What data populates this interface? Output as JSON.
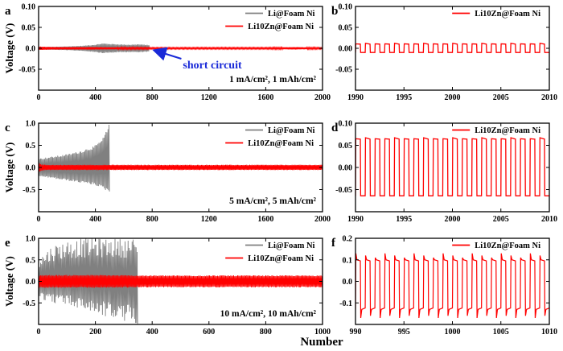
{
  "colors": {
    "li": "#808080",
    "zn": "#ff0000",
    "annotation": "#1a2ad8",
    "axis": "#000000"
  },
  "figure": {
    "shared_xlabel": "Number"
  },
  "chart_data": [
    {
      "id": "a",
      "panel_label": "a",
      "type": "line",
      "xlabel": "",
      "ylabel": "Voltage (V)",
      "xlim": [
        0,
        2000
      ],
      "ylim": [
        -0.1,
        0.1
      ],
      "xticks": [
        0,
        400,
        800,
        1200,
        1600,
        2000
      ],
      "yticks": [
        0.1,
        0.05,
        0.0,
        -0.05
      ],
      "ytick_labels": [
        "0.10",
        "0.05",
        "0.0",
        "-0.05"
      ],
      "legend": [
        "Li@Foam Ni",
        "Li10Zn@Foam Ni"
      ],
      "annotation": "1 mA/cm², 1 mAh/cm²",
      "callout": {
        "text": "short circuit",
        "x": 790,
        "y": 0.0
      },
      "series": [
        {
          "name": "Li@Foam Ni",
          "color": "#808080",
          "style": "envelope",
          "x_end": 780,
          "envelope": [
            [
              0,
              0.003
            ],
            [
              150,
              0.004
            ],
            [
              300,
              0.006
            ],
            [
              400,
              0.009
            ],
            [
              450,
              0.012
            ],
            [
              550,
              0.01
            ],
            [
              650,
              0.009
            ],
            [
              700,
              0.01
            ],
            [
              780,
              0.008
            ]
          ]
        },
        {
          "name": "Li10Zn@Foam Ni",
          "color": "#ff0000",
          "style": "envelope",
          "x_end": 2000,
          "envelope": [
            [
              0,
              0.004
            ],
            [
              100,
              0.003
            ],
            [
              400,
              0.003
            ],
            [
              800,
              0.002
            ],
            [
              1200,
              0.002
            ],
            [
              1600,
              0.002
            ],
            [
              1800,
              0.003
            ],
            [
              2000,
              0.002
            ]
          ]
        }
      ]
    },
    {
      "id": "b",
      "panel_label": "b",
      "type": "line",
      "xlabel": "",
      "ylabel": "",
      "xlim": [
        1990,
        2010
      ],
      "ylim": [
        -0.1,
        0.1
      ],
      "xticks": [
        1990,
        1995,
        2000,
        2005,
        2010
      ],
      "yticks": [
        0.1,
        0.05,
        0.0,
        -0.05
      ],
      "ytick_labels": [
        "0.10",
        "0.05",
        "0.00",
        "-0.05"
      ],
      "legend": [
        "Li10Zn@Foam Ni"
      ],
      "series": [
        {
          "name": "Li10Zn@Foam Ni",
          "color": "#ff0000",
          "style": "square",
          "x_start": 1990,
          "period": 1,
          "high": 0.01,
          "low": -0.01,
          "overshoot": 0.002
        }
      ]
    },
    {
      "id": "c",
      "panel_label": "c",
      "type": "line",
      "xlabel": "",
      "ylabel": "Voltage (V)",
      "xlim": [
        0,
        2000
      ],
      "ylim": [
        -1.0,
        1.0
      ],
      "xticks": [
        0,
        400,
        800,
        1200,
        1600,
        2000
      ],
      "yticks": [
        1.0,
        0.5,
        0.0,
        -0.5
      ],
      "ytick_labels": [
        "1.0",
        "0.5",
        "0.0",
        "-0.5"
      ],
      "legend": [
        "Li@Foam Ni",
        "Li10Zn@Foam Ni"
      ],
      "annotation": "5 mA/cm², 5 mAh/cm²",
      "series": [
        {
          "name": "Li@Foam Ni",
          "color": "#808080",
          "style": "envelope_asym",
          "x_end": 500,
          "upper": [
            [
              0,
              0.2
            ],
            [
              100,
              0.25
            ],
            [
              200,
              0.3
            ],
            [
              300,
              0.38
            ],
            [
              400,
              0.5
            ],
            [
              450,
              0.65
            ],
            [
              480,
              0.85
            ],
            [
              500,
              1.0
            ]
          ],
          "lower": [
            [
              0,
              -0.2
            ],
            [
              100,
              -0.25
            ],
            [
              200,
              -0.3
            ],
            [
              300,
              -0.35
            ],
            [
              400,
              -0.4
            ],
            [
              450,
              -0.48
            ],
            [
              500,
              -0.56
            ]
          ]
        },
        {
          "name": "Li10Zn@Foam Ni",
          "color": "#ff0000",
          "style": "envelope",
          "x_end": 2000,
          "envelope": [
            [
              0,
              0.12
            ],
            [
              20,
              0.07
            ],
            [
              60,
              0.06
            ],
            [
              400,
              0.06
            ],
            [
              1000,
              0.06
            ],
            [
              1600,
              0.06
            ],
            [
              2000,
              0.06
            ]
          ]
        }
      ]
    },
    {
      "id": "d",
      "panel_label": "d",
      "type": "line",
      "xlabel": "",
      "ylabel": "",
      "xlim": [
        1990,
        2010
      ],
      "ylim": [
        -0.1,
        0.1
      ],
      "xticks": [
        1990,
        1995,
        2000,
        2005,
        2010
      ],
      "yticks": [
        0.1,
        0.05,
        0.0,
        -0.05
      ],
      "ytick_labels": [
        "0.10",
        "0.05",
        "0.00",
        "-0.05"
      ],
      "legend": [
        "Li10Zn@Foam Ni"
      ],
      "series": [
        {
          "name": "Li10Zn@Foam Ni",
          "color": "#ff0000",
          "style": "square",
          "x_start": 1990,
          "period": 1,
          "high": 0.064,
          "low": -0.064,
          "overshoot": 0.003
        }
      ]
    },
    {
      "id": "e",
      "panel_label": "e",
      "type": "line",
      "xlabel": "",
      "ylabel": "Voltage (V)",
      "xlim": [
        0,
        1000
      ],
      "ylim": [
        -1.0,
        1.0
      ],
      "xticks": [
        0,
        200,
        400,
        600,
        800,
        1000
      ],
      "yticks": [
        1.0,
        0.5,
        0.0,
        -0.5
      ],
      "ytick_labels": [
        "1.0",
        "0.5",
        "0.0",
        "-0.5"
      ],
      "legend": [
        "Li@Foam Ni",
        "Li10Zn@Foam Ni"
      ],
      "annotation": "10 mA/cm², 10 mAh/cm²",
      "series": [
        {
          "name": "Li@Foam Ni",
          "color": "#808080",
          "style": "noisy_block",
          "x_end": 350,
          "upper": [
            [
              0,
              0.55
            ],
            [
              50,
              0.85
            ],
            [
              100,
              0.95
            ],
            [
              150,
              1.0
            ],
            [
              200,
              1.0
            ],
            [
              250,
              1.0
            ],
            [
              300,
              1.0
            ],
            [
              350,
              1.0
            ]
          ],
          "lower": [
            [
              0,
              -0.4
            ],
            [
              50,
              -0.5
            ],
            [
              100,
              -0.55
            ],
            [
              150,
              -0.65
            ],
            [
              200,
              -0.75
            ],
            [
              250,
              -0.85
            ],
            [
              300,
              -0.95
            ],
            [
              350,
              -1.0
            ]
          ]
        },
        {
          "name": "Li10Zn@Foam Ni",
          "color": "#ff0000",
          "style": "envelope",
          "x_end": 1000,
          "envelope": [
            [
              0,
              0.15
            ],
            [
              200,
              0.15
            ],
            [
              400,
              0.14
            ],
            [
              600,
              0.14
            ],
            [
              800,
              0.14
            ],
            [
              1000,
              0.14
            ]
          ]
        }
      ]
    },
    {
      "id": "f",
      "panel_label": "f",
      "type": "line",
      "xlabel": "",
      "ylabel": "",
      "xlim": [
        990,
        1010
      ],
      "ylim": [
        -0.2,
        0.2
      ],
      "xticks": [
        990,
        995,
        1000,
        1005,
        1010
      ],
      "yticks": [
        0.2,
        0.1,
        0.0,
        -0.1
      ],
      "ytick_labels": [
        "0.2",
        "0.1",
        "0.0",
        "-0.1"
      ],
      "legend": [
        "Li10Zn@Foam Ni"
      ],
      "series": [
        {
          "name": "Li10Zn@Foam Ni",
          "color": "#ff0000",
          "style": "spiky_square",
          "x_start": 990,
          "period": 1,
          "high": 0.1,
          "low": -0.13,
          "high_peak": 0.13,
          "low_peak": -0.17
        }
      ]
    }
  ]
}
